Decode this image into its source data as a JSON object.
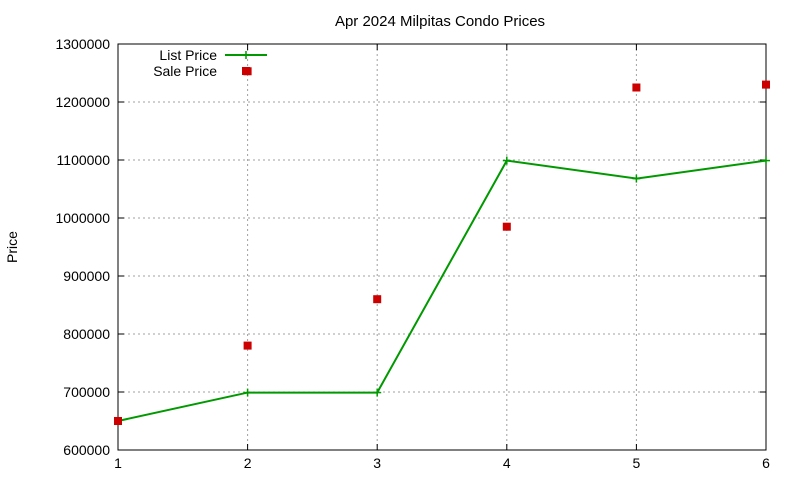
{
  "chart_data": {
    "type": "line",
    "title": "Apr 2024 Milpitas Condo Prices",
    "xlabel": "",
    "ylabel": "Price",
    "x": [
      1,
      2,
      3,
      4,
      5,
      6
    ],
    "xlim": [
      1,
      6
    ],
    "ylim": [
      600000,
      1300000
    ],
    "xticks": [
      "1",
      "2",
      "3",
      "4",
      "5",
      "6"
    ],
    "yticks": [
      "600000",
      "700000",
      "800000",
      "900000",
      "1000000",
      "1100000",
      "1200000",
      "1300000"
    ],
    "grid": true,
    "legend_position": "top-left",
    "series": [
      {
        "name": "List Price",
        "style": "line-with-plus-markers",
        "color": "#009900",
        "values": [
          650000,
          699000,
          699000,
          1099000,
          1068000,
          1099000
        ]
      },
      {
        "name": "Sale Price",
        "style": "square-markers",
        "color": "#cc0000",
        "values": [
          650000,
          780000,
          860000,
          985000,
          1225000,
          1230000
        ]
      }
    ],
    "extra_points": [
      {
        "series": "Sale Price",
        "x": 2,
        "y": 1253000
      }
    ]
  }
}
